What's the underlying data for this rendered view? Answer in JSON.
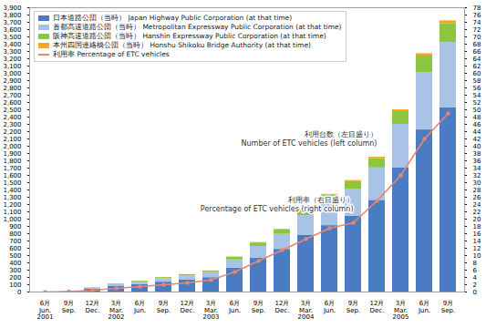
{
  "chart_data": {
    "type": "bar",
    "categories": [
      "6月\nJun.\n2001",
      "9月\nSep.",
      "12月\nDec.",
      "3月\nMar.\n2002",
      "6月\nJun.",
      "9月\nSep.",
      "12月\nDec.",
      "3月\nMar.\n2003",
      "6月\nJun.",
      "9月\nSep.",
      "12月\nDec.",
      "3月\nMar.\n2004",
      "6月\nJun.",
      "9月\nSep.",
      "12月\nDec.",
      "3月\nMar.\n2005",
      "6月\nJun.",
      "9月\nSep."
    ],
    "series": [
      {
        "name": "日本道路公団（当時） Japan Highway Public Corporation (at that time)",
        "color": "#4a7cc4",
        "values": [
          0,
          4,
          42,
          75,
          102,
          136,
          163,
          197,
          326,
          462,
          585,
          775,
          911,
          1040,
          1258,
          1700,
          2224,
          2530
        ]
      },
      {
        "name": "首都高速道路公団（当時） Metropolitan Expressway Public Corporation (at that time)",
        "color": "#a8c3e6",
        "values": [
          0,
          1,
          13,
          26,
          36,
          48,
          58,
          70,
          115,
          163,
          206,
          274,
          322,
          367,
          444,
          600,
          785,
          893
        ]
      },
      {
        "name": "阪神高速道路公団（当時） Hanshin Expressway Public Corporation (at that time)",
        "color": "#8cc63f",
        "values": [
          0,
          0,
          4,
          8,
          10,
          14,
          17,
          20,
          34,
          48,
          60,
          80,
          94,
          107,
          130,
          175,
          229,
          260
        ]
      },
      {
        "name": "本州四国連絡橋公団（当時） Honshu Shikoku Bridge Authority (at that time)",
        "color": "#f5a623",
        "values": [
          0,
          0,
          1,
          1,
          2,
          2,
          2,
          3,
          5,
          7,
          9,
          11,
          13,
          16,
          18,
          25,
          32,
          37
        ]
      },
      {
        "name": "利用率 Percentage of ETC vehicles",
        "color": "#e8866e",
        "type": "line",
        "axis": "y2",
        "marker": "circle",
        "line_style": "solid",
        "values": [
          0,
          0.1,
          0.5,
          1,
          1.5,
          2,
          2.5,
          3.3,
          5.5,
          8.5,
          11.5,
          14.5,
          17.5,
          19,
          25,
          32,
          42,
          49
        ]
      }
    ],
    "annotations": [
      "利用台数（左目盛り）\nNumber of ETC vehicles (left column)",
      "利用率（右目盛り）\nPercentage of ETC vehicles (right column)"
    ],
    "stacked": true,
    "grid": false,
    "legend": "top-left",
    "ylim": [
      0,
      3900
    ],
    "yticks": [
      0,
      100,
      200,
      300,
      400,
      500,
      600,
      700,
      800,
      900,
      {
        "value": 1000,
        "label": "1,000"
      },
      {
        "value": 1100,
        "label": "1,100"
      },
      {
        "value": 1200,
        "label": "1,200"
      },
      {
        "value": 1300,
        "label": "1,300"
      },
      {
        "value": 1400,
        "label": "1,400"
      },
      {
        "value": 1500,
        "label": "1,500"
      },
      {
        "value": 1600,
        "label": "1,600"
      },
      {
        "value": 1700,
        "label": "1,700"
      },
      {
        "value": 1800,
        "label": "1,800"
      },
      {
        "value": 1900,
        "label": "1,900"
      },
      {
        "value": 2000,
        "label": "2,000"
      },
      {
        "value": 2100,
        "label": "2,100"
      },
      {
        "value": 2200,
        "label": "2,200"
      },
      {
        "value": 2300,
        "label": "2,300"
      },
      {
        "value": 2400,
        "label": "2,400"
      },
      {
        "value": 2500,
        "label": "2,500"
      },
      {
        "value": 2600,
        "label": "2,600"
      },
      {
        "value": 2700,
        "label": "2,700"
      },
      {
        "value": 2800,
        "label": "2,800"
      },
      {
        "value": 2900,
        "label": "2,900"
      },
      {
        "value": 3000,
        "label": "3,000"
      },
      {
        "value": 3100,
        "label": "3,100"
      },
      {
        "value": 3200,
        "label": "3,200"
      },
      {
        "value": 3300,
        "label": "3,300"
      },
      {
        "value": 3400,
        "label": "3,400"
      },
      {
        "value": 3500,
        "label": "3,500"
      },
      {
        "value": 3600,
        "label": "3,600"
      },
      {
        "value": 3700,
        "label": "3,700"
      },
      {
        "value": 3800,
        "label": "3,800"
      },
      {
        "value": 3900,
        "label": "3,900"
      }
    ],
    "y2lim": [
      0,
      78
    ],
    "y2ticks": [
      0,
      2,
      4,
      6,
      8,
      10,
      12,
      14,
      16,
      18,
      20,
      22,
      24,
      26,
      28,
      30,
      32,
      34,
      36,
      38,
      40,
      42,
      44,
      46,
      48,
      50,
      52,
      54,
      56,
      58,
      60,
      62,
      64,
      66,
      68,
      70,
      72,
      74,
      76,
      78
    ]
  }
}
